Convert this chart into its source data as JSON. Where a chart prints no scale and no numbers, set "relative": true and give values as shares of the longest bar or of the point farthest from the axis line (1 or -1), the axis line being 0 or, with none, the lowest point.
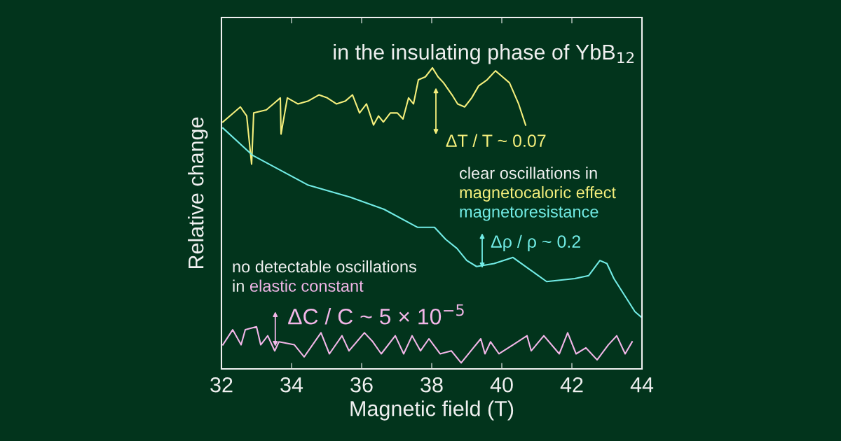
{
  "chart_data": {
    "type": "line",
    "title": "in the insulating phase of YbB$_{12}$",
    "xlabel": "Magnetic field (T)",
    "ylabel": "Relative change",
    "relative": true,
    "xlim": [
      32,
      44
    ],
    "xticks": [
      32,
      34,
      36,
      38,
      40,
      42,
      44
    ],
    "grid": false,
    "legend": false,
    "marker": "none",
    "line_style": "solid",
    "series": [
      {
        "name": "magnetocaloric effect",
        "color": "#f5ef7c",
        "x": [
          32.04,
          32.54,
          32.72,
          32.86,
          32.92,
          33.28,
          33.48,
          33.68,
          33.7,
          33.88,
          34.18,
          34.48,
          34.78,
          35.02,
          35.28,
          35.54,
          35.74,
          35.94,
          36.14,
          36.34,
          36.48,
          36.62,
          36.82,
          37.02,
          37.18,
          37.34,
          37.48,
          37.62,
          37.82,
          38.02,
          38.18,
          38.34,
          38.58,
          38.74,
          38.94,
          39.14,
          39.34,
          39.58,
          39.82,
          40.02,
          40.22,
          40.48,
          40.68
        ],
        "values": [
          0.82,
          0.87,
          0.84,
          0.68,
          0.85,
          0.86,
          0.88,
          0.9,
          0.78,
          0.9,
          0.88,
          0.89,
          0.91,
          0.9,
          0.88,
          0.89,
          0.91,
          0.85,
          0.88,
          0.81,
          0.84,
          0.82,
          0.85,
          0.85,
          0.83,
          0.9,
          0.88,
          0.96,
          0.97,
          1.0,
          0.97,
          0.95,
          0.91,
          0.88,
          0.87,
          0.9,
          0.94,
          0.96,
          0.99,
          0.97,
          0.95,
          0.88,
          0.81
        ]
      },
      {
        "name": "magnetoresistance",
        "color": "#72ece6",
        "x": [
          32.04,
          32.88,
          33.68,
          34.48,
          35.68,
          36.64,
          37.6,
          38.08,
          38.4,
          38.72,
          39.0,
          39.28,
          39.78,
          40.32,
          40.8,
          41.28,
          42.08,
          42.48,
          42.8,
          43.0,
          43.2,
          43.8,
          44.0
        ],
        "values": [
          0.8,
          0.71,
          0.66,
          0.61,
          0.57,
          0.53,
          0.47,
          0.47,
          0.43,
          0.4,
          0.36,
          0.34,
          0.35,
          0.37,
          0.33,
          0.29,
          0.3,
          0.31,
          0.36,
          0.35,
          0.3,
          0.19,
          0.17
        ]
      },
      {
        "name": "elastic constant",
        "color": "#f2b6e8",
        "x": [
          32.04,
          32.32,
          32.56,
          32.68,
          33.0,
          33.12,
          33.32,
          33.52,
          33.64,
          34.08,
          34.36,
          34.84,
          35.08,
          35.44,
          35.64,
          36.08,
          36.32,
          36.56,
          36.96,
          37.2,
          37.44,
          37.68,
          37.92,
          38.24,
          38.56,
          38.84,
          39.12,
          39.4,
          39.52,
          39.68,
          39.92,
          40.32,
          40.72,
          40.84,
          41.2,
          41.64,
          41.88,
          42.12,
          42.4,
          42.72,
          43.04,
          43.28,
          43.52,
          43.72
        ],
        "values": [
          0.08,
          0.13,
          0.08,
          0.13,
          0.14,
          0.08,
          0.11,
          0.06,
          0.09,
          0.08,
          0.04,
          0.12,
          0.05,
          0.11,
          0.06,
          0.12,
          0.09,
          0.05,
          0.11,
          0.05,
          0.11,
          0.06,
          0.1,
          0.05,
          0.06,
          0.02,
          0.06,
          0.1,
          0.05,
          0.09,
          0.05,
          0.08,
          0.11,
          0.06,
          0.11,
          0.05,
          0.12,
          0.05,
          0.07,
          0.03,
          0.08,
          0.11,
          0.05,
          0.09
        ]
      }
    ],
    "annotations": [
      "ΔT / T ~ 0.07",
      "Δρ / ρ ~ 0.2",
      "ΔC / C ~ 5 × 10$^{−5}$",
      "clear oscillations in",
      "no detectable oscillations",
      "in"
    ]
  }
}
